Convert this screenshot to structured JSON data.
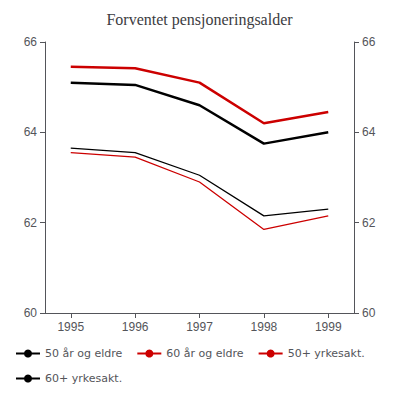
{
  "chart_data": {
    "type": "line",
    "title": "Forventet pensjoneringsalder",
    "x": [
      1995,
      1996,
      1997,
      1998,
      1999
    ],
    "series": [
      {
        "name": "50 år og eldre",
        "color": "#000000",
        "values": [
          65.1,
          65.05,
          64.6,
          63.75,
          64.0
        ]
      },
      {
        "name": "60 år og eldre",
        "color": "#cc0000",
        "values": [
          65.45,
          65.42,
          65.1,
          64.2,
          64.45
        ]
      },
      {
        "name": "50+ yrkesakt.",
        "color": "#cc0000",
        "values": [
          63.55,
          63.45,
          62.9,
          61.85,
          62.15
        ]
      },
      {
        "name": "60+ yrkesakt.",
        "color": "#000000",
        "values": [
          63.65,
          63.55,
          63.05,
          62.15,
          62.3
        ]
      }
    ],
    "xlim": [
      1994.6,
      1999.4
    ],
    "xticks": [
      1995,
      1996,
      1997,
      1998,
      1999
    ],
    "ylim": [
      60,
      66
    ],
    "yticks": [
      60,
      62,
      64,
      66
    ],
    "y2lim": [
      60,
      66
    ],
    "y2ticks": [
      60,
      62,
      64,
      66
    ],
    "grid": false,
    "legend": "lower left"
  }
}
